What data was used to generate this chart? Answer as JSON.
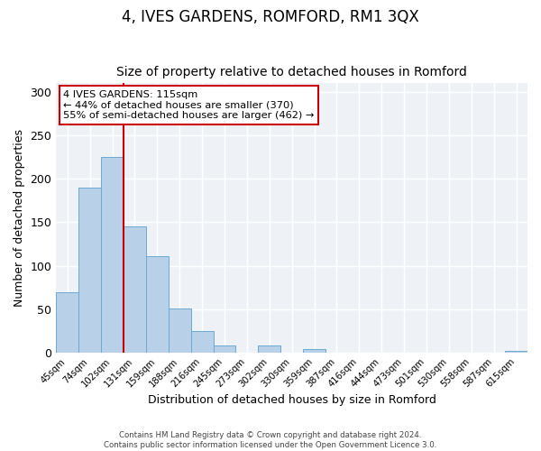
{
  "title": "4, IVES GARDENS, ROMFORD, RM1 3QX",
  "subtitle": "Size of property relative to detached houses in Romford",
  "xlabel": "Distribution of detached houses by size in Romford",
  "ylabel": "Number of detached properties",
  "bar_labels": [
    "45sqm",
    "74sqm",
    "102sqm",
    "131sqm",
    "159sqm",
    "188sqm",
    "216sqm",
    "245sqm",
    "273sqm",
    "302sqm",
    "330sqm",
    "359sqm",
    "387sqm",
    "416sqm",
    "444sqm",
    "473sqm",
    "501sqm",
    "530sqm",
    "558sqm",
    "587sqm",
    "615sqm"
  ],
  "bar_values": [
    70,
    190,
    225,
    145,
    111,
    51,
    25,
    8,
    0,
    8,
    0,
    4,
    0,
    0,
    0,
    0,
    0,
    0,
    0,
    0,
    2
  ],
  "bar_color": "#b8d0e8",
  "bar_edgecolor": "#6aaad4",
  "vline_x": 2.5,
  "vline_color": "#cc0000",
  "annotation_text": "4 IVES GARDENS: 115sqm\n← 44% of detached houses are smaller (370)\n55% of semi-detached houses are larger (462) →",
  "annotation_box_edgecolor": "#cc0000",
  "ylim": [
    0,
    310
  ],
  "yticks": [
    0,
    50,
    100,
    150,
    200,
    250,
    300
  ],
  "bg_color": "#eef2f7",
  "footer_line1": "Contains HM Land Registry data © Crown copyright and database right 2024.",
  "footer_line2": "Contains public sector information licensed under the Open Government Licence 3.0.",
  "title_fontsize": 12,
  "subtitle_fontsize": 10
}
